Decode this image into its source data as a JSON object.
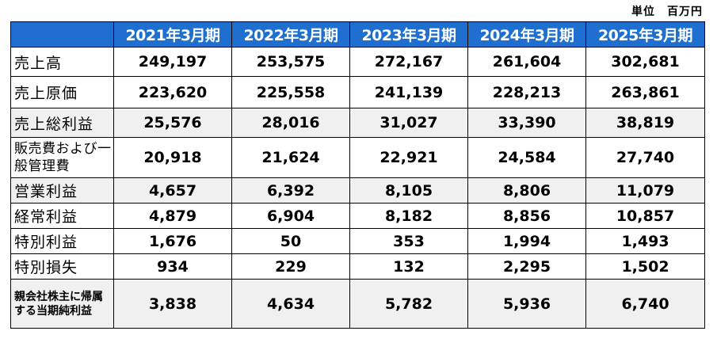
{
  "unit_label": "単位　百万円",
  "table": {
    "corner": "",
    "headers": [
      "2021年3月期",
      "2022年3月期",
      "2023年3月期",
      "2024年3月期",
      "2025年3月期"
    ],
    "rows": [
      {
        "label": "売上高",
        "values": [
          "249,197",
          "253,575",
          "272,167",
          "261,604",
          "302,681"
        ]
      },
      {
        "label": "売上原価",
        "values": [
          "223,620",
          "225,558",
          "241,139",
          "228,213",
          "263,861"
        ]
      },
      {
        "label": "売上総利益",
        "values": [
          "25,576",
          "28,016",
          "31,027",
          "33,390",
          "38,819"
        ]
      },
      {
        "label": "販売費および一般管理費",
        "values": [
          "20,918",
          "21,624",
          "22,921",
          "24,584",
          "27,740"
        ]
      },
      {
        "label": "営業利益",
        "values": [
          "4,657",
          "6,392",
          "8,105",
          "8,806",
          "11,079"
        ]
      },
      {
        "label": "経常利益",
        "values": [
          "4,879",
          "6,904",
          "8,182",
          "8,856",
          "10,857"
        ]
      },
      {
        "label": "特別利益",
        "values": [
          "1,676",
          "50",
          "353",
          "1,994",
          "1,493"
        ]
      },
      {
        "label": "特別損失",
        "values": [
          "934",
          "229",
          "132",
          "2,295",
          "1,502"
        ]
      },
      {
        "label": "親会社株主に帰属する当期純利益",
        "values": [
          "3,838",
          "4,634",
          "5,782",
          "5,936",
          "6,740"
        ]
      }
    ]
  }
}
